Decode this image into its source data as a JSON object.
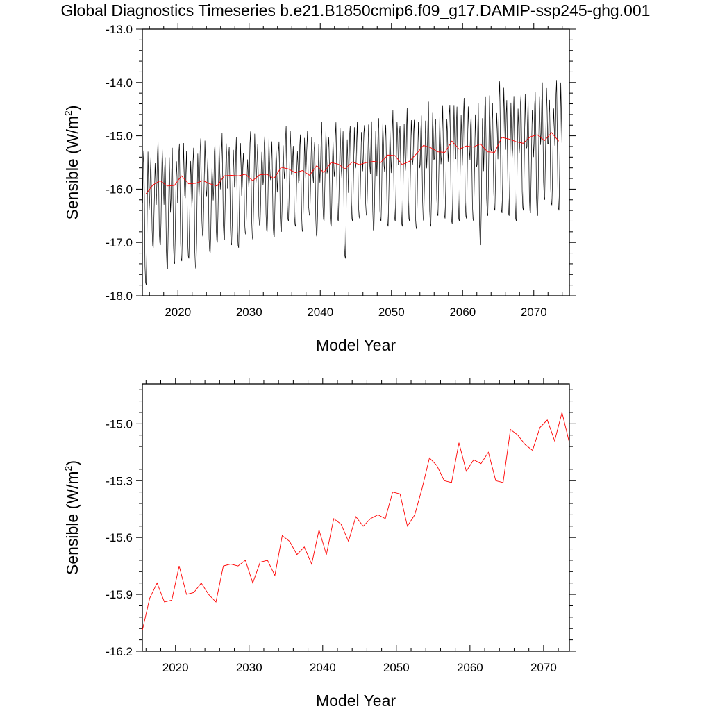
{
  "title": "Global Diagnostics Timeseries b.e21.B1850cmip6.f09_g17.DAMIP-ssp245-ghg.001",
  "colors": {
    "monthly": "#000000",
    "annual": "#ff0000",
    "axis": "#000000"
  },
  "chart_data": [
    {
      "type": "line",
      "xlabel": "Model Year",
      "ylabel": "Sensible (W/m",
      "ylabel_sup": "2",
      "ylabel_close": ")",
      "xlim": [
        2015,
        2075
      ],
      "ylim": [
        -18.0,
        -13.0
      ],
      "grid": false,
      "x_ticks": [
        "2020",
        "2030",
        "2040",
        "2050",
        "2060",
        "2070"
      ],
      "y_ticks": [
        "-13.0",
        "-14.0",
        "-15.0",
        "-16.0",
        "-17.0",
        "-18.0"
      ],
      "monthly_cycle": {
        "x_start": 2015.04,
        "months": 708,
        "months_per_year": 12,
        "annual_minimum_trough": [
          -17.8,
          -17.1,
          -17.05,
          -17.5,
          -17.4,
          -17.35,
          -17.3,
          -17.5,
          -16.9,
          -17.2,
          -17.0,
          -16.95,
          -17.05,
          -17.1,
          -16.85,
          -16.95,
          -16.7,
          -16.8,
          -16.9,
          -16.8,
          -16.6,
          -16.7,
          -16.8,
          -16.5,
          -16.9,
          -16.6,
          -16.7,
          -16.6,
          -17.3,
          -16.6,
          -16.55,
          -16.5,
          -16.8,
          -16.6,
          -16.7,
          -16.6,
          -16.7,
          -16.6,
          -16.75,
          -16.6,
          -16.7,
          -16.5,
          -16.55,
          -16.65,
          -16.6,
          -16.55,
          -16.6,
          -17.05,
          -16.5,
          -16.4,
          -16.45,
          -16.5,
          -16.6,
          -16.4,
          -16.45,
          -16.5,
          -16.2,
          -16.3,
          -16.4
        ],
        "annual_maximum_peak": [
          -15.1,
          -15.3,
          -15.0,
          -15.25,
          -15.15,
          -15.0,
          -15.2,
          -15.1,
          -14.95,
          -15.3,
          -15.05,
          -14.85,
          -15.1,
          -14.95,
          -15.2,
          -14.85,
          -15.05,
          -14.9,
          -15.05,
          -14.95,
          -14.8,
          -15.05,
          -14.9,
          -14.85,
          -14.95,
          -14.75,
          -14.85,
          -14.7,
          -14.8,
          -14.65,
          -14.75,
          -14.6,
          -14.7,
          -14.55,
          -14.65,
          -14.5,
          -14.6,
          -14.45,
          -14.55,
          -14.5,
          -14.3,
          -14.5,
          -14.4,
          -14.25,
          -14.35,
          -14.2,
          -14.45,
          -14.3,
          -14.1,
          -14.3,
          -13.85,
          -14.2,
          -14.15,
          -14.1,
          -14.2,
          -14.05,
          -13.9,
          -14.2,
          -13.85
        ]
      },
      "series": [
        {
          "role": "annual-mean",
          "x": [
            2015.5,
            2016.5,
            2017.5,
            2018.5,
            2019.5,
            2020.5,
            2021.5,
            2022.5,
            2023.5,
            2024.5,
            2025.5,
            2026.5,
            2027.5,
            2028.5,
            2029.5,
            2030.5,
            2031.5,
            2032.5,
            2033.5,
            2034.5,
            2035.5,
            2036.5,
            2037.5,
            2038.5,
            2039.5,
            2040.5,
            2041.5,
            2042.5,
            2043.5,
            2044.5,
            2045.5,
            2046.5,
            2047.5,
            2048.5,
            2049.5,
            2050.5,
            2051.5,
            2052.5,
            2053.5,
            2054.5,
            2055.5,
            2056.5,
            2057.5,
            2058.5,
            2059.5,
            2060.5,
            2061.5,
            2062.5,
            2063.5,
            2064.5,
            2065.5,
            2066.5,
            2067.5,
            2068.5,
            2069.5,
            2070.5,
            2071.5,
            2072.5,
            2073.5
          ],
          "values": [
            -16.09,
            -15.92,
            -15.84,
            -15.94,
            -15.93,
            -15.75,
            -15.9,
            -15.89,
            -15.84,
            -15.9,
            -15.94,
            -15.75,
            -15.74,
            -15.75,
            -15.72,
            -15.84,
            -15.73,
            -15.72,
            -15.8,
            -15.59,
            -15.62,
            -15.69,
            -15.65,
            -15.74,
            -15.56,
            -15.69,
            -15.5,
            -15.53,
            -15.62,
            -15.49,
            -15.54,
            -15.5,
            -15.48,
            -15.5,
            -15.36,
            -15.37,
            -15.54,
            -15.48,
            -15.34,
            -15.18,
            -15.22,
            -15.3,
            -15.31,
            -15.1,
            -15.25,
            -15.19,
            -15.21,
            -15.15,
            -15.3,
            -15.31,
            -15.03,
            -15.06,
            -15.11,
            -15.14,
            -15.02,
            -14.98,
            -15.09,
            -14.94,
            -15.1
          ]
        }
      ]
    },
    {
      "type": "line",
      "xlabel": "Model Year",
      "ylabel": "Sensible (W/m",
      "ylabel_sup": "2",
      "ylabel_close": ")",
      "xlim": [
        2015.5,
        2073.5
      ],
      "ylim": [
        -16.2,
        -14.79
      ],
      "grid": false,
      "x_ticks": [
        "2020",
        "2030",
        "2040",
        "2050",
        "2060",
        "2070"
      ],
      "y_ticks": [
        "-15.0",
        "-15.3",
        "-15.6",
        "-15.9",
        "-16.2"
      ],
      "series": [
        {
          "role": "annual-mean",
          "x": [
            2015.5,
            2016.5,
            2017.5,
            2018.5,
            2019.5,
            2020.5,
            2021.5,
            2022.5,
            2023.5,
            2024.5,
            2025.5,
            2026.5,
            2027.5,
            2028.5,
            2029.5,
            2030.5,
            2031.5,
            2032.5,
            2033.5,
            2034.5,
            2035.5,
            2036.5,
            2037.5,
            2038.5,
            2039.5,
            2040.5,
            2041.5,
            2042.5,
            2043.5,
            2044.5,
            2045.5,
            2046.5,
            2047.5,
            2048.5,
            2049.5,
            2050.5,
            2051.5,
            2052.5,
            2053.5,
            2054.5,
            2055.5,
            2056.5,
            2057.5,
            2058.5,
            2059.5,
            2060.5,
            2061.5,
            2062.5,
            2063.5,
            2064.5,
            2065.5,
            2066.5,
            2067.5,
            2068.5,
            2069.5,
            2070.5,
            2071.5,
            2072.5,
            2073.5
          ],
          "values": [
            -16.09,
            -15.92,
            -15.84,
            -15.94,
            -15.93,
            -15.75,
            -15.9,
            -15.89,
            -15.84,
            -15.9,
            -15.94,
            -15.75,
            -15.74,
            -15.75,
            -15.72,
            -15.84,
            -15.73,
            -15.72,
            -15.8,
            -15.59,
            -15.62,
            -15.69,
            -15.65,
            -15.74,
            -15.56,
            -15.69,
            -15.5,
            -15.53,
            -15.62,
            -15.49,
            -15.54,
            -15.5,
            -15.48,
            -15.5,
            -15.36,
            -15.37,
            -15.54,
            -15.48,
            -15.34,
            -15.18,
            -15.22,
            -15.3,
            -15.31,
            -15.1,
            -15.25,
            -15.19,
            -15.21,
            -15.15,
            -15.3,
            -15.31,
            -15.03,
            -15.06,
            -15.11,
            -15.14,
            -15.02,
            -14.98,
            -15.09,
            -14.94,
            -15.1
          ]
        }
      ]
    }
  ]
}
